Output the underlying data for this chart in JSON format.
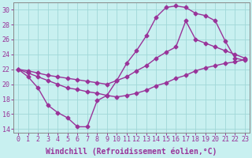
{
  "xlabel": "Windchill (Refroidissement éolien,°C)",
  "background_color": "#c8f0f0",
  "grid_color": "#a0d8d8",
  "line_color": "#993399",
  "marker": "D",
  "markersize": 2.5,
  "linewidth": 1.0,
  "xlim": [
    -0.5,
    23.5
  ],
  "ylim": [
    13.5,
    31
  ],
  "xticks": [
    0,
    1,
    2,
    3,
    4,
    5,
    6,
    7,
    8,
    9,
    10,
    11,
    12,
    13,
    14,
    15,
    16,
    17,
    18,
    19,
    20,
    21,
    22,
    23
  ],
  "yticks": [
    14,
    16,
    18,
    20,
    22,
    24,
    26,
    28,
    30
  ],
  "curve1_x": [
    0,
    1,
    2,
    3,
    4,
    5,
    6,
    7,
    8,
    9,
    10,
    11,
    12,
    13,
    14,
    15,
    16,
    17,
    18,
    19,
    20,
    21,
    22,
    23
  ],
  "curve1_y": [
    22,
    21,
    19.5,
    17.2,
    16.2,
    15.5,
    14.3,
    14.3,
    17.8,
    18.5,
    20.5,
    22.8,
    24.5,
    26.5,
    29.0,
    30.3,
    30.5,
    30.3,
    29.5,
    29.2,
    28.5,
    25.8,
    23.5,
    23.2
  ],
  "curve2_x": [
    0,
    1,
    2,
    3,
    4,
    5,
    6,
    7,
    8,
    9,
    10,
    11,
    12,
    13,
    14,
    15,
    16,
    17,
    18,
    19,
    20,
    21,
    22,
    23
  ],
  "curve2_y": [
    22,
    21.8,
    21.5,
    21.2,
    21.0,
    20.8,
    20.6,
    20.4,
    20.2,
    20.0,
    20.5,
    21.0,
    21.8,
    22.5,
    23.5,
    24.3,
    25.0,
    28.5,
    26.0,
    25.5,
    25.0,
    24.5,
    24.0,
    23.5
  ],
  "curve3_x": [
    0,
    1,
    2,
    3,
    4,
    5,
    6,
    7,
    8,
    9,
    10,
    11,
    12,
    13,
    14,
    15,
    16,
    17,
    18,
    19,
    20,
    21,
    22,
    23
  ],
  "curve3_y": [
    22,
    21.5,
    21.0,
    20.5,
    20.0,
    19.5,
    19.3,
    19.0,
    18.8,
    18.5,
    18.3,
    18.5,
    18.8,
    19.2,
    19.8,
    20.2,
    20.8,
    21.2,
    21.8,
    22.2,
    22.5,
    22.8,
    23.0,
    23.3
  ],
  "xlabel_fontsize": 7,
  "tick_fontsize": 6
}
